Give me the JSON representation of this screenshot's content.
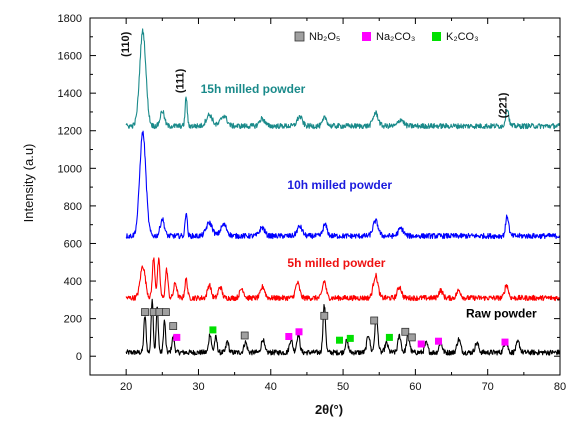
{
  "chart_data": {
    "type": "line",
    "title": "",
    "xlabel": "2θ(°)",
    "ylabel": "Intensity (a.u)",
    "xlim": [
      15,
      80
    ],
    "ylim": [
      -100,
      1800
    ],
    "x_ticks": [
      20,
      30,
      40,
      50,
      60,
      70,
      80
    ],
    "y_ticks": [
      0,
      200,
      400,
      600,
      800,
      1000,
      1200,
      1400,
      1600,
      1800
    ],
    "grid": false,
    "legend": {
      "placement": "top-right",
      "entries": [
        {
          "name": "Nb₂O₅",
          "color": "#a0a0a0"
        },
        {
          "name": "Na₂CO₃",
          "color": "#ff00ff"
        },
        {
          "name": "K₂CO₃",
          "color": "#00e000"
        }
      ]
    },
    "series": [
      {
        "name": "Raw powder",
        "color": "#000000",
        "baseline": 20,
        "peaks": [
          [
            22.6,
            195,
            0.22
          ],
          [
            23.6,
            290,
            0.2
          ],
          [
            24.3,
            240,
            0.2
          ],
          [
            25.3,
            170,
            0.2
          ],
          [
            26.5,
            80,
            0.25
          ],
          [
            31.6,
            100,
            0.25
          ],
          [
            32.4,
            80,
            0.25
          ],
          [
            34.0,
            60,
            0.25
          ],
          [
            36.5,
            55,
            0.3
          ],
          [
            38.9,
            70,
            0.3
          ],
          [
            42.8,
            70,
            0.3
          ],
          [
            43.8,
            95,
            0.3
          ],
          [
            47.4,
            250,
            0.25
          ],
          [
            50.5,
            60,
            0.3
          ],
          [
            53.5,
            95,
            0.3
          ],
          [
            54.6,
            180,
            0.3
          ],
          [
            56.0,
            50,
            0.3
          ],
          [
            57.8,
            90,
            0.3
          ],
          [
            59.0,
            90,
            0.3
          ],
          [
            61.5,
            50,
            0.3
          ],
          [
            63.5,
            55,
            0.3
          ],
          [
            66.0,
            70,
            0.35
          ],
          [
            68.5,
            50,
            0.35
          ],
          [
            72.5,
            60,
            0.35
          ],
          [
            74.2,
            55,
            0.35
          ]
        ]
      },
      {
        "name": "5h milled powder",
        "color": "#ff0000",
        "baseline": 310,
        "peaks": [
          [
            22.3,
            170,
            0.5
          ],
          [
            23.8,
            210,
            0.25
          ],
          [
            24.5,
            200,
            0.25
          ],
          [
            25.6,
            150,
            0.25
          ],
          [
            26.8,
            80,
            0.3
          ],
          [
            28.3,
            100,
            0.25
          ],
          [
            31.5,
            70,
            0.35
          ],
          [
            33.0,
            60,
            0.35
          ],
          [
            36.0,
            50,
            0.4
          ],
          [
            38.9,
            60,
            0.4
          ],
          [
            43.7,
            80,
            0.4
          ],
          [
            47.4,
            90,
            0.35
          ],
          [
            54.5,
            120,
            0.45
          ],
          [
            57.8,
            60,
            0.4
          ],
          [
            63.5,
            40,
            0.4
          ],
          [
            66.0,
            40,
            0.4
          ],
          [
            72.6,
            70,
            0.35
          ]
        ]
      },
      {
        "name": "10h milled powder",
        "color": "#0000ff",
        "baseline": 640,
        "peaks": [
          [
            22.3,
            550,
            0.6
          ],
          [
            25.0,
            90,
            0.4
          ],
          [
            28.3,
            130,
            0.2
          ],
          [
            31.5,
            70,
            0.6
          ],
          [
            33.5,
            60,
            0.6
          ],
          [
            38.8,
            45,
            0.5
          ],
          [
            44.0,
            50,
            0.5
          ],
          [
            47.5,
            60,
            0.4
          ],
          [
            54.5,
            80,
            0.5
          ],
          [
            58.0,
            40,
            0.5
          ],
          [
            72.7,
            105,
            0.3
          ]
        ]
      },
      {
        "name": "15h milled powder",
        "color": "#1a8a8a",
        "baseline": 1225,
        "peaks": [
          [
            22.3,
            505,
            0.6
          ],
          [
            25.0,
            80,
            0.4
          ],
          [
            28.3,
            155,
            0.2
          ],
          [
            31.5,
            60,
            0.6
          ],
          [
            33.5,
            55,
            0.6
          ],
          [
            38.8,
            40,
            0.5
          ],
          [
            44.0,
            50,
            0.5
          ],
          [
            47.5,
            45,
            0.4
          ],
          [
            54.5,
            70,
            0.5
          ],
          [
            58.0,
            35,
            0.5
          ],
          [
            72.7,
            95,
            0.3
          ]
        ]
      }
    ],
    "x_start": 20,
    "x_end": 80,
    "series_labels": [
      {
        "text": "15h milled powder",
        "x": 30.3,
        "y": 1400,
        "color": "#1a8a8a"
      },
      {
        "text": "10h milled powder",
        "x": 42.3,
        "y": 890,
        "color": "#1a1add"
      },
      {
        "text": "5h milled powder",
        "x": 42.3,
        "y": 475,
        "color": "#ee1111"
      },
      {
        "text": "Raw powder",
        "x": 67.0,
        "y": 205,
        "color": "#000000"
      }
    ],
    "peak_labels": [
      {
        "text": "(110)",
        "x": 20.4,
        "y": 1660
      },
      {
        "text": "(111)",
        "x": 27.9,
        "y": 1465
      },
      {
        "text": "(221)",
        "x": 72.6,
        "y": 1335
      }
    ],
    "markers": [
      {
        "phase": "Nb₂O₅",
        "x": 22.6,
        "y": 235
      },
      {
        "phase": "Nb₂O₅",
        "x": 23.8,
        "y": 235
      },
      {
        "phase": "Nb₂O₅",
        "x": 24.6,
        "y": 235
      },
      {
        "phase": "Nb₂O₅",
        "x": 25.5,
        "y": 235
      },
      {
        "phase": "Nb₂O₅",
        "x": 26.5,
        "y": 160
      },
      {
        "phase": "Nb₂O₅",
        "x": 36.4,
        "y": 110
      },
      {
        "phase": "Nb₂O₅",
        "x": 47.4,
        "y": 215
      },
      {
        "phase": "Nb₂O₅",
        "x": 54.3,
        "y": 190
      },
      {
        "phase": "Nb₂O₅",
        "x": 58.6,
        "y": 130
      },
      {
        "phase": "Nb₂O₅",
        "x": 59.5,
        "y": 100
      },
      {
        "phase": "Na₂CO₃",
        "x": 27.0,
        "y": 100
      },
      {
        "phase": "Na₂CO₃",
        "x": 42.5,
        "y": 105
      },
      {
        "phase": "Na₂CO₃",
        "x": 43.9,
        "y": 130
      },
      {
        "phase": "Na₂CO₃",
        "x": 60.8,
        "y": 65
      },
      {
        "phase": "Na₂CO₃",
        "x": 63.2,
        "y": 80
      },
      {
        "phase": "Na₂CO₃",
        "x": 72.4,
        "y": 75
      },
      {
        "phase": "K₂CO₃",
        "x": 32.0,
        "y": 140
      },
      {
        "phase": "K₂CO₃",
        "x": 49.5,
        "y": 85
      },
      {
        "phase": "K₂CO₃",
        "x": 51.0,
        "y": 95
      },
      {
        "phase": "K₂CO₃",
        "x": 56.4,
        "y": 100
      }
    ]
  }
}
